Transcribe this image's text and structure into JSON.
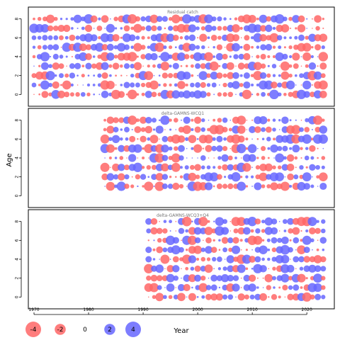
{
  "figure": {
    "y_axis_label": "Age",
    "x_axis_label": "Year"
  },
  "chart_data": [
    {
      "type": "scatter",
      "title": "Residual catch",
      "xlim": [
        1970,
        2024
      ],
      "ylim": [
        -0.5,
        8.5
      ],
      "y_ticks": [
        0,
        2,
        4,
        6,
        8
      ],
      "year_start": 1970,
      "year_end": 2023,
      "ages": [
        0,
        1,
        2,
        3,
        4,
        5,
        6,
        7,
        8
      ],
      "encoding": "bubble size proportional to |residual|; red = negative, blue = positive"
    },
    {
      "type": "scatter",
      "title": "delta-GAMNS-WCQ1",
      "xlim": [
        1970,
        2024
      ],
      "ylim": [
        -0.5,
        8.5
      ],
      "y_ticks": [
        0,
        2,
        4,
        6,
        8
      ],
      "year_start": 1983,
      "year_end": 2023,
      "ages": [
        1,
        2,
        3,
        4,
        5,
        6,
        7,
        8
      ],
      "encoding": "bubble size proportional to |residual|; red = negative, blue = positive"
    },
    {
      "type": "scatter",
      "title": "delta-GAMNS-WCQ3+Q4",
      "xlim": [
        1970,
        2024
      ],
      "ylim": [
        -0.5,
        8.5
      ],
      "y_ticks": [
        0,
        2,
        4,
        6,
        8
      ],
      "year_start": 1991,
      "year_end": 2023,
      "ages": [
        0,
        1,
        2,
        3,
        4,
        5,
        6,
        7,
        8
      ],
      "encoding": "bubble size proportional to |residual|; red = negative, blue = positive"
    }
  ],
  "x_ticks": [
    1970,
    1980,
    1990,
    2000,
    2010,
    2020
  ],
  "legend": {
    "title": "",
    "entries": [
      {
        "label": "-4",
        "value": -4
      },
      {
        "label": "-2",
        "value": -2
      },
      {
        "label": "0",
        "value": 0
      },
      {
        "label": "2",
        "value": 2
      },
      {
        "label": "4",
        "value": 4
      }
    ]
  },
  "colors": {
    "negative": "#ff6666",
    "positive": "#6666ff",
    "frame": "#000000",
    "axis_text": "#000000",
    "title_text": "#777777"
  }
}
